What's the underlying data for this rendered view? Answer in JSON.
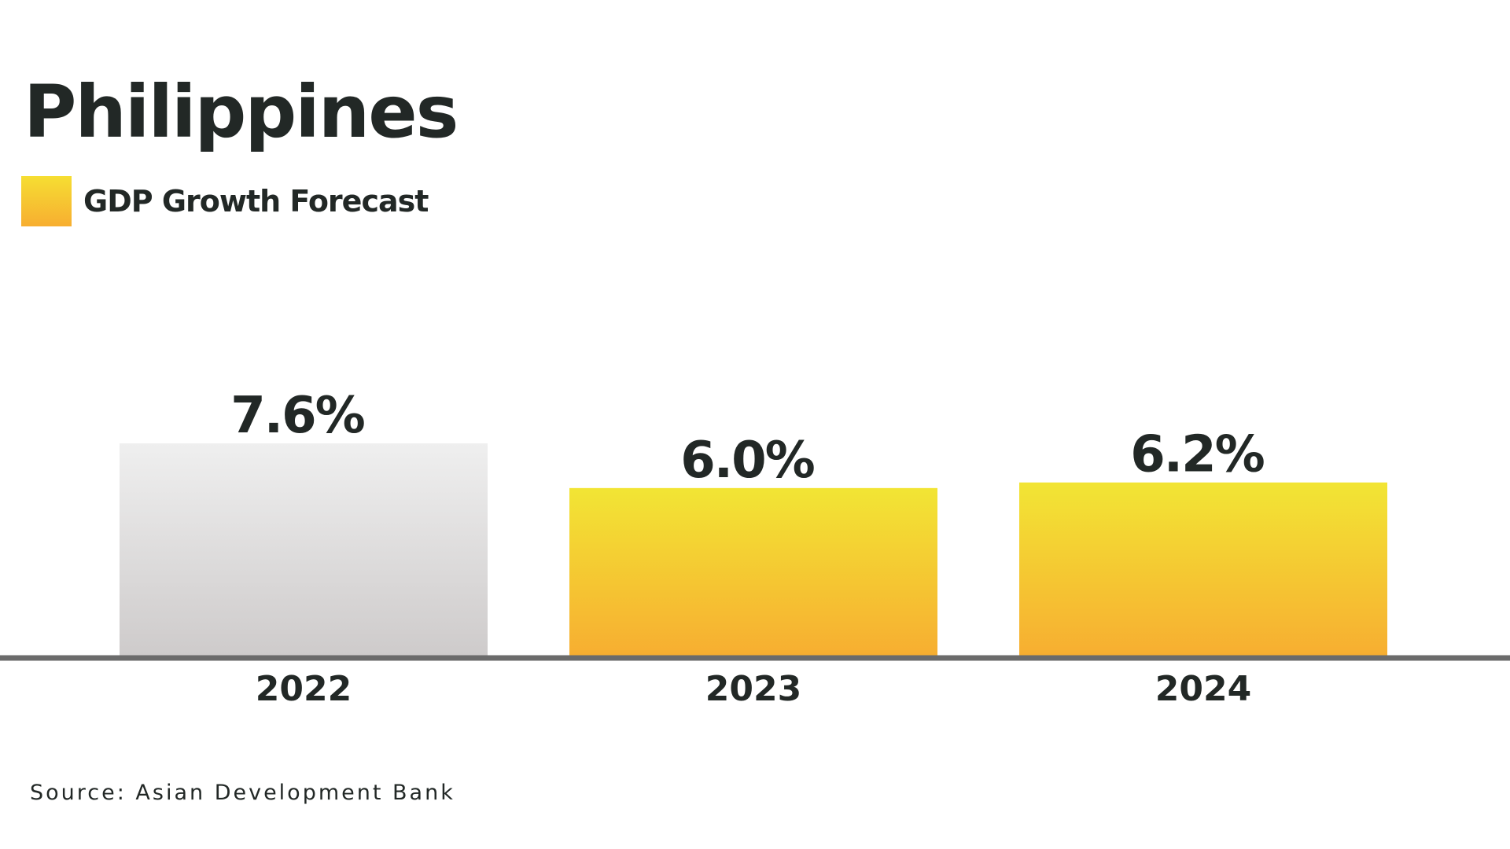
{
  "chart_data": {
    "type": "bar",
    "title": "Philippines",
    "xlabel": "",
    "ylabel": "",
    "categories": [
      "2022",
      "2023",
      "2024"
    ],
    "series": [
      {
        "name": "GDP Growth Forecast",
        "values": [
          7.6,
          6.0,
          6.2
        ],
        "value_labels": [
          "7.6%",
          "6.0%",
          "6.2%"
        ],
        "color": "#f6c933"
      }
    ],
    "bar_colors": [
      "#dcdbdb",
      "#f6c933",
      "#f6c933"
    ],
    "legend": {
      "placement": "top-left",
      "entries": [
        "GDP Growth Forecast"
      ]
    },
    "grid": false,
    "ylim": [
      0,
      7.6
    ]
  },
  "source": "Source: Asian Development Bank"
}
